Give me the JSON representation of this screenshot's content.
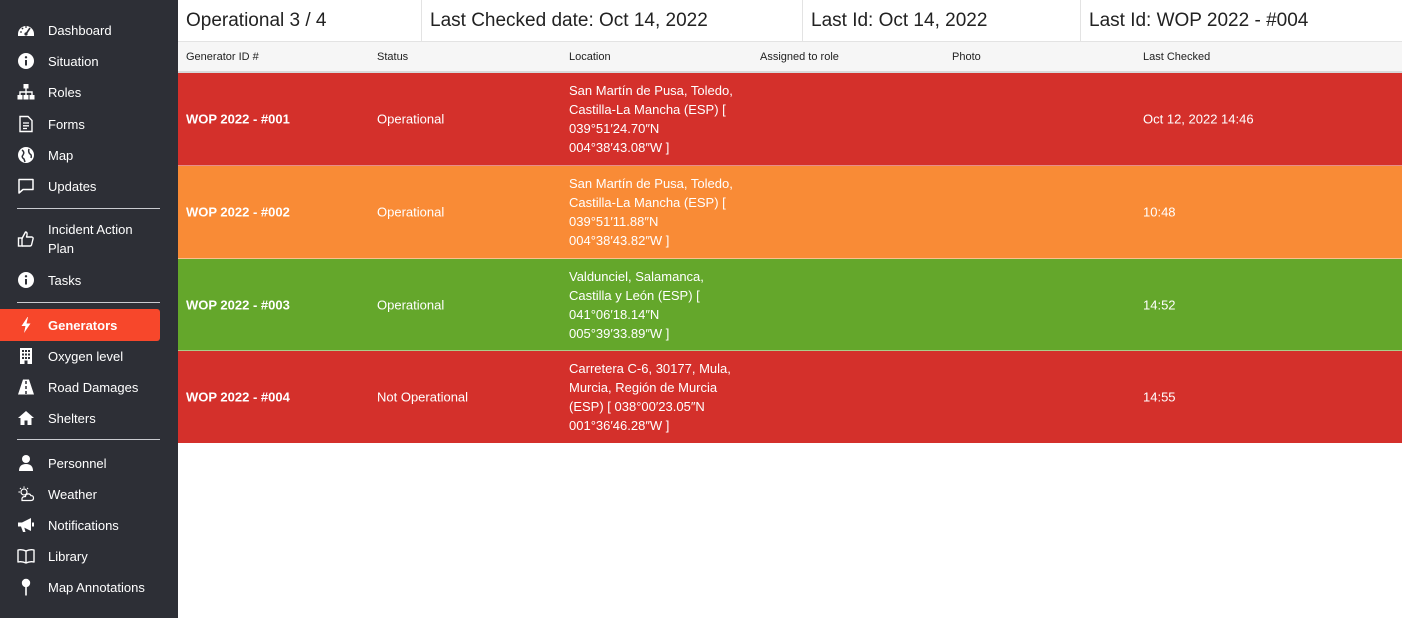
{
  "colors": {
    "sidebar_bg": "#2d2f36",
    "active_item": "#f7472b",
    "row_red": "#d4302b",
    "row_orange": "#f98b36",
    "row_green": "#64a72b"
  },
  "sidebar": {
    "groups": [
      [
        {
          "label": "Dashboard",
          "icon": "dashboard-icon"
        },
        {
          "label": "Situation",
          "icon": "info-icon"
        },
        {
          "label": "Roles",
          "icon": "org-chart-icon"
        },
        {
          "label": "Forms",
          "icon": "document-icon"
        },
        {
          "label": "Map",
          "icon": "globe-icon"
        },
        {
          "label": "Updates",
          "icon": "chat-icon"
        }
      ],
      [
        {
          "label": "Incident Action Plan",
          "icon": "thumbs-up-icon"
        },
        {
          "label": "Tasks",
          "icon": "info-icon"
        }
      ],
      [
        {
          "label": "Generators",
          "icon": "lightning-icon",
          "active": true
        },
        {
          "label": "Oxygen level",
          "icon": "building-icon"
        },
        {
          "label": "Road Damages",
          "icon": "road-icon"
        },
        {
          "label": "Shelters",
          "icon": "house-icon"
        }
      ],
      [
        {
          "label": "Personnel",
          "icon": "person-icon"
        },
        {
          "label": "Weather",
          "icon": "weather-icon"
        },
        {
          "label": "Notifications",
          "icon": "megaphone-icon"
        },
        {
          "label": "Library",
          "icon": "book-icon"
        },
        {
          "label": "Map Annotations",
          "icon": "pin-icon"
        }
      ]
    ]
  },
  "summary": {
    "operational": "Operational 3 / 4",
    "last_checked": "Last Checked date: Oct 14, 2022",
    "last_id_date": "Last Id: Oct 14, 2022",
    "last_id": "Last Id: WOP 2022 - #004"
  },
  "table": {
    "headers": {
      "id": "Generator ID #",
      "status": "Status",
      "location": "Location",
      "assigned": "Assigned to role",
      "photo": "Photo",
      "last_checked": "Last Checked"
    },
    "rows": [
      {
        "id": "WOP 2022 - #001",
        "status": "Operational",
        "location": [
          "San Martín de Pusa, Toledo,",
          "Castilla-La Mancha (ESP) [",
          "039°51′24.70″N",
          "004°38′43.08″W ]"
        ],
        "assigned": "",
        "photo": "",
        "last_checked": "Oct 12, 2022 14:46",
        "color": "#d4302b"
      },
      {
        "id": "WOP 2022 - #002",
        "status": "Operational",
        "location": [
          "San Martín de Pusa, Toledo,",
          "Castilla-La Mancha (ESP) [",
          "039°51′11.88″N",
          "004°38′43.82″W ]"
        ],
        "assigned": "",
        "photo": "",
        "last_checked": "10:48",
        "color": "#f98b36"
      },
      {
        "id": "WOP 2022 - #003",
        "status": "Operational",
        "location": [
          "Valdunciel, Salamanca,",
          "Castilla y León (ESP) [",
          "041°06′18.14″N",
          "005°39′33.89″W ]"
        ],
        "assigned": "",
        "photo": "",
        "last_checked": "14:52",
        "color": "#64a72b"
      },
      {
        "id": "WOP 2022 - #004",
        "status": "Not Operational",
        "location": [
          "Carretera C-6, 30177, Mula,",
          "Murcia, Región de Murcia",
          "(ESP) [ 038°00′23.05″N",
          "001°36′46.28″W ]"
        ],
        "assigned": "",
        "photo": "",
        "last_checked": "14:55",
        "color": "#d4302b"
      }
    ]
  }
}
